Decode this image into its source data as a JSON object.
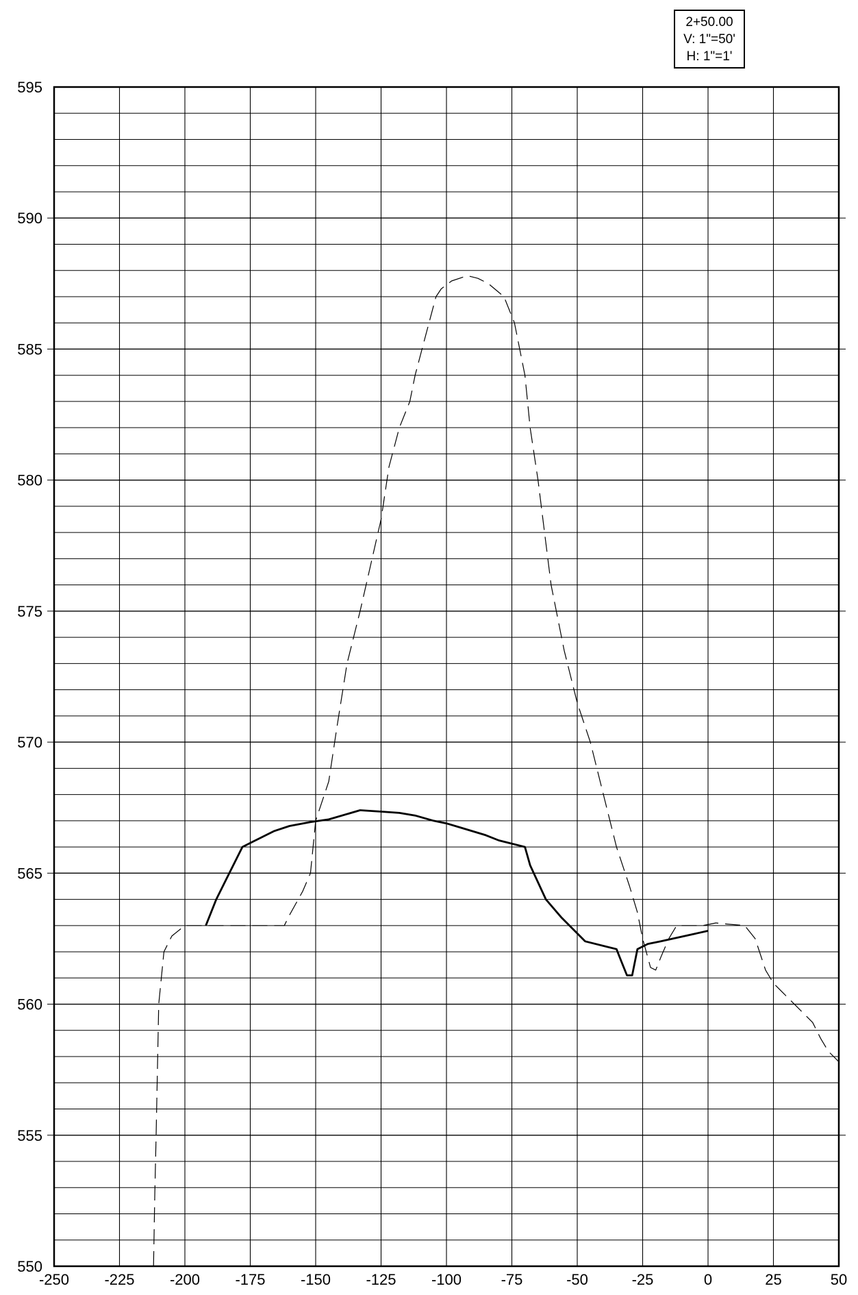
{
  "station_box": {
    "station": "2+50.00",
    "vertical_scale": "V: 1\"=50'",
    "horizontal_scale": "H: 1\"=1'"
  },
  "chart_data": {
    "type": "line",
    "title": "",
    "xlabel": "",
    "ylabel": "",
    "xlim": [
      -250,
      50
    ],
    "ylim": [
      550,
      595
    ],
    "x_major_step": 25,
    "y_major_step": 5,
    "y_minor_step": 1,
    "grid": true,
    "x_tick_labels": [
      "-250",
      "-225",
      "-200",
      "-175",
      "-150",
      "-125",
      "-100",
      "-75",
      "-50",
      "-25",
      "0",
      "25",
      "50"
    ],
    "y_tick_labels": [
      "550",
      "555",
      "560",
      "565",
      "570",
      "575",
      "580",
      "585",
      "590",
      "595"
    ],
    "series": [
      {
        "style": "dashed",
        "x": [
          -212,
          -211.5,
          -211,
          -210,
          -208,
          -205,
          -200,
          -195,
          -190,
          -180,
          -170,
          -162,
          -160,
          -155,
          -152,
          -150,
          -145,
          -142,
          -138,
          -133,
          -125,
          -122,
          -118,
          -114,
          -112,
          -108,
          -104,
          -102,
          -98,
          -92,
          -88,
          -84,
          -78,
          -74,
          -70,
          -68,
          -65,
          -60,
          -55,
          -50,
          -45,
          -40,
          -35,
          -30,
          -27,
          -25,
          -22,
          -20,
          -18,
          -15,
          -12,
          -8,
          -2,
          3,
          8,
          14,
          18,
          22,
          25,
          30,
          35,
          40,
          43,
          46,
          48,
          50
        ],
        "y": [
          550,
          552.8,
          555,
          560,
          562,
          562.6,
          563,
          563,
          563,
          563,
          563,
          563,
          563.4,
          564.3,
          565,
          567,
          568.5,
          570.5,
          573,
          575,
          578.5,
          580.5,
          582,
          583,
          584,
          585.5,
          587,
          587.3,
          587.6,
          587.8,
          587.7,
          587.5,
          587,
          586,
          584,
          582,
          580,
          576,
          573.5,
          571.5,
          570,
          568,
          566,
          564.5,
          563.5,
          562.5,
          561.4,
          561.3,
          561.8,
          562.5,
          563,
          563,
          563,
          563.1,
          563.05,
          563,
          562.5,
          561.3,
          560.8,
          560.3,
          559.8,
          559.3,
          558.7,
          558.2,
          558,
          557.8
        ]
      },
      {
        "style": "solid",
        "x": [
          -192,
          -188,
          -183,
          -178,
          -174,
          -170,
          -166,
          -160,
          -152,
          -145,
          -133,
          -125,
          -118,
          -112,
          -105,
          -100,
          -95,
          -90,
          -85,
          -80,
          -70,
          -68,
          -62,
          -56,
          -47,
          -35,
          -33,
          -31,
          -29,
          -27,
          -23,
          -18,
          0
        ],
        "y": [
          563,
          564,
          565,
          566,
          566.2,
          566.4,
          566.6,
          566.8,
          566.95,
          567.05,
          567.4,
          567.35,
          567.3,
          567.2,
          567,
          566.9,
          566.75,
          566.6,
          566.45,
          566.25,
          566,
          565.3,
          564,
          563.3,
          562.4,
          562.1,
          561.6,
          561.1,
          561.1,
          562.1,
          562.3,
          562.4,
          562.8
        ]
      }
    ]
  }
}
